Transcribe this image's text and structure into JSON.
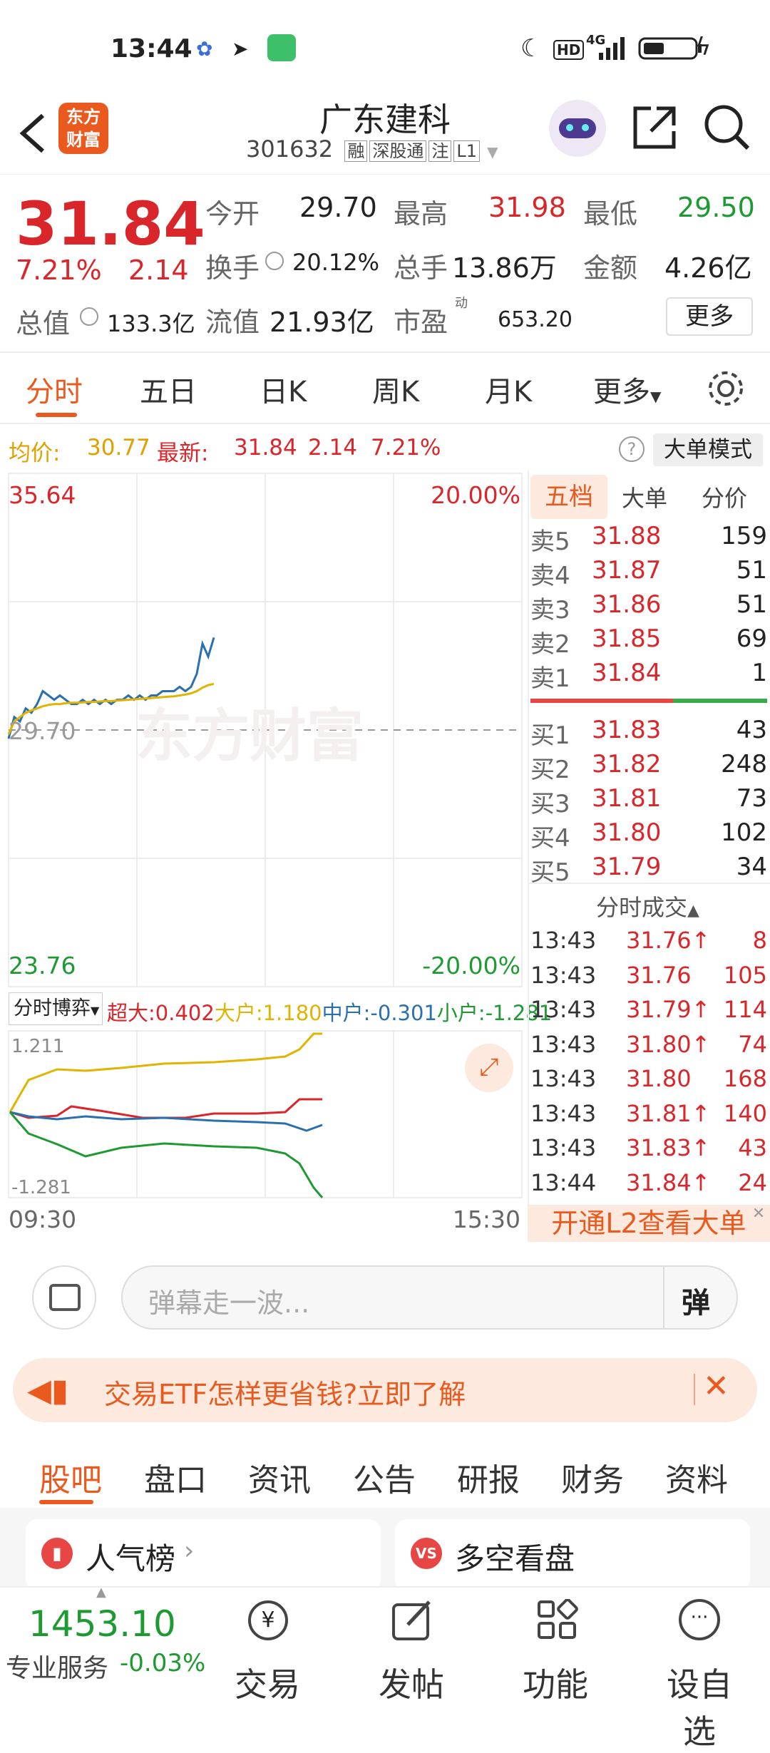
{
  "status": {
    "time": "13:44",
    "network": "4G",
    "hd": "HD"
  },
  "header": {
    "logo_line1": "东方",
    "logo_line2": "财富",
    "title": "广东建科",
    "code": "301632",
    "tags": [
      "融",
      "深股通",
      "注",
      "L1"
    ]
  },
  "quote": {
    "price": "31.84",
    "change_pct": "7.21%",
    "change": "2.14",
    "open_label": "今开",
    "open": "29.70",
    "high_label": "最高",
    "high": "31.98",
    "low_label": "最低",
    "low": "29.50",
    "turnover_label": "换手",
    "turnover": "20.12%",
    "volume_label": "总手",
    "volume": "13.86万",
    "amount_label": "金额",
    "amount": "4.26亿",
    "mktcap_label": "总值",
    "mktcap": "133.3亿",
    "float_label": "流值",
    "float_cap": "21.93亿",
    "pe_label": "市盈",
    "pe_sup": "动",
    "pe": "653.20",
    "more": "更多"
  },
  "tabs": [
    "分时",
    "五日",
    "日K",
    "周K",
    "月K",
    "更多"
  ],
  "avgbar": {
    "avg_label": "均价:",
    "avg": "30.77",
    "latest_label": "最新:",
    "latest": "31.84",
    "chg": "2.14",
    "pct": "7.21%",
    "mode": "大单模式"
  },
  "chart": {
    "top_left": "35.64",
    "top_right": "20.00%",
    "mid": "29.70",
    "bottom_left": "23.76",
    "bottom_right": "-20.00%",
    "watermark": "东方财富",
    "time_start": "09:30",
    "time_end": "15:30",
    "flow_selector": "分时博弈",
    "flow": [
      {
        "label": "超大:",
        "value": "0.402",
        "color": "#d8262a"
      },
      {
        "label": "大户:",
        "value": "1.180",
        "color": "#e0b400"
      },
      {
        "label": "中户:",
        "value": "-0.301",
        "color": "#2a6fb0"
      },
      {
        "label": "小户:",
        "value": "-1.281",
        "color": "#1f9a33"
      }
    ],
    "flow_top": "1.211",
    "flow_bottom": "-1.281"
  },
  "chart_data": {
    "type": "line",
    "ylim": [
      23.76,
      35.64
    ],
    "series": [
      {
        "values": [
          29.5,
          30.0,
          29.9,
          30.2,
          30.1,
          30.3,
          30.6,
          30.5,
          30.4,
          30.5,
          30.4,
          30.3,
          30.3,
          30.4,
          30.3,
          30.4,
          30.3,
          30.4,
          30.3,
          30.4,
          30.4,
          30.5,
          30.4,
          30.5,
          30.4,
          30.5,
          30.5,
          30.6,
          30.6,
          30.6,
          30.7,
          30.6,
          30.7,
          31.0,
          31.7,
          31.4,
          31.84
        ]
      },
      {
        "values": [
          29.6,
          29.9,
          30.0,
          30.1,
          30.15,
          30.2,
          30.25,
          30.28,
          30.3,
          30.3,
          30.32,
          30.33,
          30.33,
          30.34,
          30.35,
          30.35,
          30.36,
          30.37,
          30.37,
          30.38,
          30.39,
          30.4,
          30.41,
          30.42,
          30.43,
          30.44,
          30.45,
          30.46,
          30.47,
          30.48,
          30.5,
          30.52,
          30.55,
          30.6,
          30.68,
          30.74,
          30.77
        ]
      }
    ]
  },
  "book": {
    "tabs": [
      "五档",
      "大单",
      "分价"
    ],
    "asks": [
      {
        "l": "卖5",
        "p": "31.88",
        "v": "159"
      },
      {
        "l": "卖4",
        "p": "31.87",
        "v": "51"
      },
      {
        "l": "卖3",
        "p": "31.86",
        "v": "51"
      },
      {
        "l": "卖2",
        "p": "31.85",
        "v": "69"
      },
      {
        "l": "卖1",
        "p": "31.84",
        "v": "1"
      }
    ],
    "bids": [
      {
        "l": "买1",
        "p": "31.83",
        "v": "43"
      },
      {
        "l": "买2",
        "p": "31.82",
        "v": "248"
      },
      {
        "l": "买3",
        "p": "31.81",
        "v": "73"
      },
      {
        "l": "买4",
        "p": "31.80",
        "v": "102"
      },
      {
        "l": "买5",
        "p": "31.79",
        "v": "34"
      }
    ],
    "ticks_title": "分时成交",
    "ticks": [
      {
        "t": "13:43",
        "p": "31.76↑",
        "v": "8"
      },
      {
        "t": "13:43",
        "p": "31.76",
        "v": "105"
      },
      {
        "t": "13:43",
        "p": "31.79↑",
        "v": "114"
      },
      {
        "t": "13:43",
        "p": "31.80↑",
        "v": "74"
      },
      {
        "t": "13:43",
        "p": "31.80",
        "v": "168"
      },
      {
        "t": "13:43",
        "p": "31.81↑",
        "v": "140"
      },
      {
        "t": "13:43",
        "p": "31.83↑",
        "v": "43"
      },
      {
        "t": "13:44",
        "p": "31.84↑",
        "v": "24"
      }
    ],
    "l2_banner": "开通L2查看大单"
  },
  "danmu": {
    "placeholder": "弹幕走一波...",
    "send": "弹"
  },
  "ad": {
    "text": "交易ETF怎样更省钱?立即了解"
  },
  "subtabs": [
    "股吧",
    "盘口",
    "资讯",
    "公告",
    "研报",
    "财务",
    "资料"
  ],
  "cards": [
    {
      "label": "人气榜"
    },
    {
      "label": "多空看盘"
    }
  ],
  "bottom": {
    "index": "1453.10",
    "service": "专业服务",
    "index_chg": "-0.03%",
    "nav": [
      "交易",
      "发帖",
      "功能",
      "设自选"
    ]
  }
}
